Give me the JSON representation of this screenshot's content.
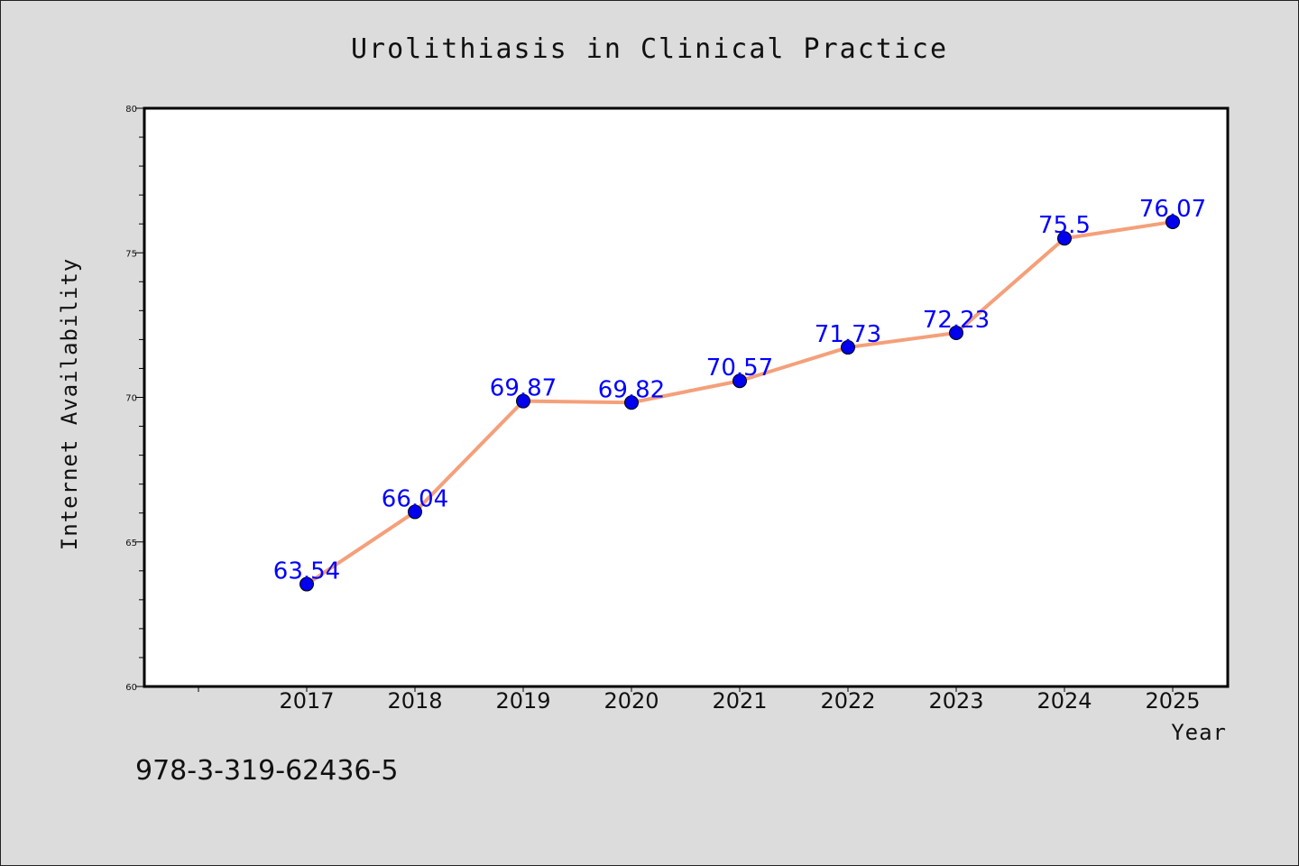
{
  "chart_data": {
    "type": "line",
    "title": "Urolithiasis in Clinical Practice",
    "xlabel": "Year",
    "ylabel": "Internet Availability",
    "x": [
      "2017",
      "2018",
      "2019",
      "2020",
      "2021",
      "2022",
      "2023",
      "2024",
      "2025"
    ],
    "series": [
      {
        "values": [
          63.54,
          66.04,
          69.87,
          69.82,
          70.57,
          71.73,
          72.23,
          75.5,
          76.07
        ],
        "labels": [
          "63.54",
          "66.04",
          "69.87",
          "69.82",
          "70.57",
          "71.73",
          "72.23",
          "75.5",
          "76.07"
        ],
        "line_color": "#f4a07a",
        "marker_color": "#0000ee"
      }
    ],
    "ylim": [
      60,
      80
    ],
    "yticks": [
      "60",
      "65",
      "70",
      "75",
      "80"
    ],
    "grid": false,
    "legend": "none"
  },
  "footer": {
    "isbn": "978-3-319-62436-5"
  },
  "colors": {
    "background": "#dcdcdc",
    "plot_background": "#ffffff",
    "label_color": "#0000ff"
  }
}
